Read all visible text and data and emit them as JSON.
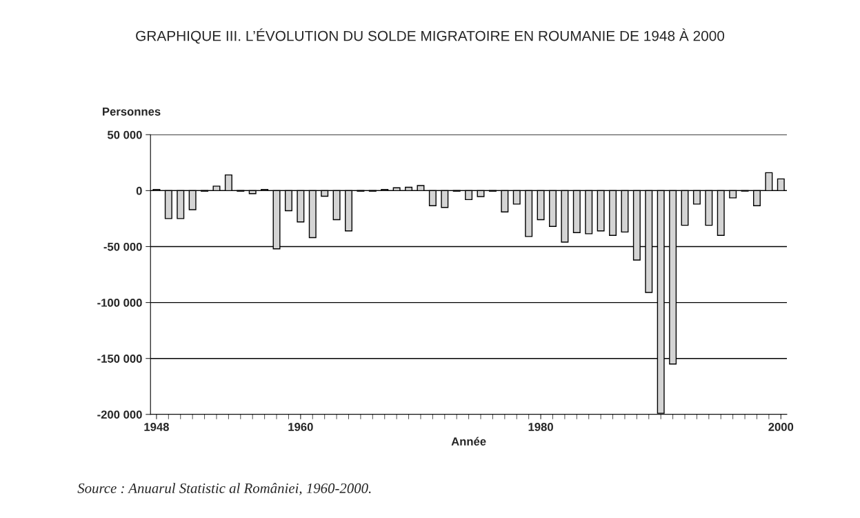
{
  "chart_data": {
    "type": "bar",
    "title": "GRAPHIQUE III. L’ÉVOLUTION DU SOLDE MIGRATOIRE EN ROUMANIE DE 1948 À 2000",
    "xlabel": "Année",
    "ylabel": "Personnes",
    "annotations": [
      "Source : Anuarul Statistic al României, 1960-2000."
    ],
    "x": [
      1948,
      1949,
      1950,
      1951,
      1952,
      1953,
      1954,
      1955,
      1956,
      1957,
      1958,
      1959,
      1960,
      1961,
      1962,
      1963,
      1964,
      1965,
      1966,
      1967,
      1968,
      1969,
      1970,
      1971,
      1972,
      1973,
      1974,
      1975,
      1976,
      1977,
      1978,
      1979,
      1980,
      1981,
      1982,
      1983,
      1984,
      1985,
      1986,
      1987,
      1988,
      1989,
      1990,
      1991,
      1992,
      1993,
      1994,
      1995,
      1996,
      1997,
      1998,
      1999,
      2000
    ],
    "values": [
      1000,
      -25000,
      -25000,
      -17000,
      -500,
      4000,
      14000,
      -500,
      -2700,
      1000,
      -52000,
      -18000,
      -28000,
      -42000,
      -5000,
      -26000,
      -36000,
      -500,
      -500,
      1000,
      2500,
      3000,
      4500,
      -13500,
      -15000,
      -500,
      -8000,
      -5300,
      -500,
      -19000,
      -12000,
      -41000,
      -26000,
      -32000,
      -46000,
      -37500,
      -38500,
      -36000,
      -40000,
      -37000,
      -62000,
      -91000,
      -199000,
      -155000,
      -31000,
      -12000,
      -31000,
      -40000,
      -6500,
      -500,
      -13500,
      16000,
      10500
    ],
    "color": "#d4d4d4",
    "xlim": [
      1947.5,
      2000.5
    ],
    "xticks": [
      1948,
      1960,
      1980,
      2000
    ],
    "ylim": [
      -200000,
      50000
    ],
    "yticks": [
      {
        "value": 50000,
        "label": "50 000"
      },
      {
        "value": 0,
        "label": "0"
      },
      {
        "value": -50000,
        "label": "-50 000"
      },
      {
        "value": -100000,
        "label": "-100 000"
      },
      {
        "value": -150000,
        "label": "-150 000"
      },
      {
        "value": -200000,
        "label": "-200 000"
      }
    ],
    "grid": "y"
  }
}
